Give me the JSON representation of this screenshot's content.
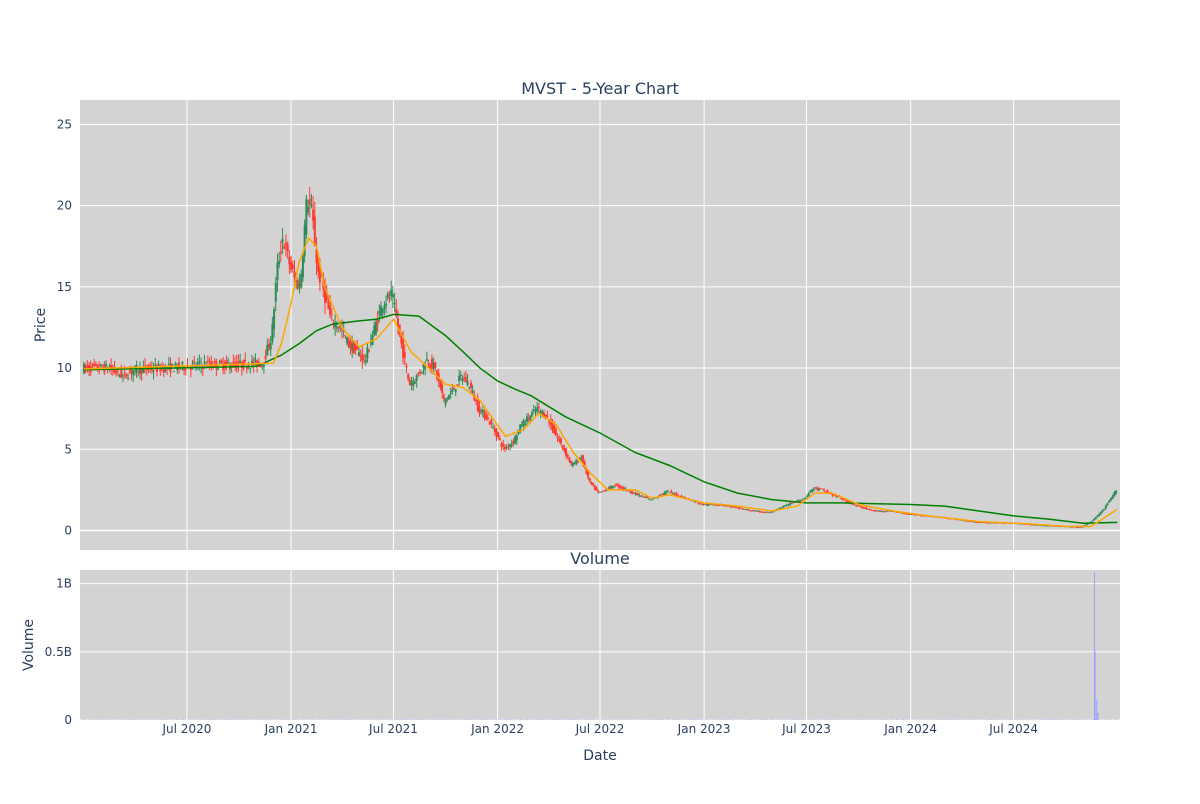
{
  "chart_data": [
    {
      "type": "candlestick",
      "title": "MVST - 5-Year Chart",
      "xlabel": "",
      "ylabel": "Price",
      "ylim": [
        -1.2,
        26.5
      ],
      "yticks": [
        0,
        5,
        10,
        15,
        20,
        25
      ],
      "grid": true,
      "colors": {
        "up": "#2e8b57",
        "down": "#ff3b30",
        "ma_short": "#ffa500",
        "ma_long": "#008000",
        "plot_bg": "#d3d3d3"
      },
      "price_path": [
        [
          "2020-01-01",
          10.0
        ],
        [
          "2020-02-15",
          10.0
        ],
        [
          "2020-03-15",
          9.5
        ],
        [
          "2020-04-01",
          9.9
        ],
        [
          "2020-06-01",
          10.0
        ],
        [
          "2020-07-01",
          10.1
        ],
        [
          "2020-08-01",
          10.2
        ],
        [
          "2020-10-01",
          10.2
        ],
        [
          "2020-11-15",
          10.3
        ],
        [
          "2020-12-01",
          12.0
        ],
        [
          "2020-12-10",
          16.0
        ],
        [
          "2020-12-20",
          18.0
        ],
        [
          "2021-01-01",
          16.5
        ],
        [
          "2021-01-10",
          15.5
        ],
        [
          "2021-01-20",
          15.0
        ],
        [
          "2021-02-01",
          20.5
        ],
        [
          "2021-02-10",
          19.5
        ],
        [
          "2021-02-20",
          16.0
        ],
        [
          "2021-03-01",
          15.0
        ],
        [
          "2021-03-15",
          13.0
        ],
        [
          "2021-04-01",
          12.5
        ],
        [
          "2021-04-15",
          11.5
        ],
        [
          "2021-05-01",
          11.0
        ],
        [
          "2021-05-15",
          10.5
        ],
        [
          "2021-06-01",
          12.5
        ],
        [
          "2021-06-15",
          14.0
        ],
        [
          "2021-07-01",
          14.5
        ],
        [
          "2021-07-15",
          12.0
        ],
        [
          "2021-08-01",
          9.0
        ],
        [
          "2021-08-15",
          9.5
        ],
        [
          "2021-09-01",
          10.5
        ],
        [
          "2021-09-15",
          10.0
        ],
        [
          "2021-10-01",
          8.0
        ],
        [
          "2021-10-15",
          8.5
        ],
        [
          "2021-11-01",
          9.5
        ],
        [
          "2021-11-15",
          9.0
        ],
        [
          "2021-12-01",
          7.5
        ],
        [
          "2021-12-15",
          7.0
        ],
        [
          "2022-01-01",
          6.0
        ],
        [
          "2022-01-15",
          5.0
        ],
        [
          "2022-02-01",
          5.5
        ],
        [
          "2022-02-15",
          6.5
        ],
        [
          "2022-03-01",
          7.0
        ],
        [
          "2022-03-15",
          7.5
        ],
        [
          "2022-04-01",
          7.0
        ],
        [
          "2022-04-15",
          6.0
        ],
        [
          "2022-05-01",
          5.0
        ],
        [
          "2022-05-15",
          4.0
        ],
        [
          "2022-06-01",
          4.5
        ],
        [
          "2022-06-15",
          3.0
        ],
        [
          "2022-07-01",
          2.3
        ],
        [
          "2022-08-01",
          2.8
        ],
        [
          "2022-09-01",
          2.3
        ],
        [
          "2022-10-01",
          1.9
        ],
        [
          "2022-11-01",
          2.4
        ],
        [
          "2022-12-01",
          2.0
        ],
        [
          "2023-01-01",
          1.6
        ],
        [
          "2023-02-01",
          1.6
        ],
        [
          "2023-03-01",
          1.4
        ],
        [
          "2023-04-01",
          1.2
        ],
        [
          "2023-05-01",
          1.1
        ],
        [
          "2023-06-01",
          1.6
        ],
        [
          "2023-07-01",
          2.0
        ],
        [
          "2023-07-15",
          2.6
        ],
        [
          "2023-08-01",
          2.5
        ],
        [
          "2023-09-01",
          2.0
        ],
        [
          "2023-10-01",
          1.5
        ],
        [
          "2023-11-01",
          1.2
        ],
        [
          "2023-12-01",
          1.2
        ],
        [
          "2024-01-01",
          1.0
        ],
        [
          "2024-02-01",
          0.9
        ],
        [
          "2024-03-01",
          0.8
        ],
        [
          "2024-05-01",
          0.5
        ],
        [
          "2024-07-01",
          0.45
        ],
        [
          "2024-09-01",
          0.3
        ],
        [
          "2024-11-01",
          0.2
        ],
        [
          "2024-11-20",
          0.6
        ],
        [
          "2024-12-10",
          1.3
        ],
        [
          "2024-12-31",
          2.4
        ]
      ],
      "ma_short": [
        [
          "2020-01-01",
          9.95
        ],
        [
          "2020-12-01",
          10.3
        ],
        [
          "2020-12-15",
          11.5
        ],
        [
          "2021-01-01",
          14.0
        ],
        [
          "2021-01-15",
          16.5
        ],
        [
          "2021-02-01",
          18.0
        ],
        [
          "2021-02-15",
          17.5
        ],
        [
          "2021-03-01",
          15.0
        ],
        [
          "2021-04-01",
          12.5
        ],
        [
          "2021-05-01",
          11.3
        ],
        [
          "2021-06-01",
          11.8
        ],
        [
          "2021-07-01",
          13.0
        ],
        [
          "2021-08-01",
          11.0
        ],
        [
          "2021-09-01",
          10.0
        ],
        [
          "2021-10-01",
          9.0
        ],
        [
          "2021-11-01",
          8.8
        ],
        [
          "2021-12-01",
          8.0
        ],
        [
          "2022-01-15",
          5.8
        ],
        [
          "2022-02-15",
          6.2
        ],
        [
          "2022-03-15",
          7.2
        ],
        [
          "2022-04-15",
          6.5
        ],
        [
          "2022-05-15",
          4.8
        ],
        [
          "2022-06-15",
          3.5
        ],
        [
          "2022-07-15",
          2.5
        ],
        [
          "2022-09-01",
          2.5
        ],
        [
          "2022-10-01",
          2.0
        ],
        [
          "2022-11-01",
          2.2
        ],
        [
          "2023-01-01",
          1.7
        ],
        [
          "2023-03-01",
          1.5
        ],
        [
          "2023-05-01",
          1.2
        ],
        [
          "2023-06-15",
          1.5
        ],
        [
          "2023-07-15",
          2.3
        ],
        [
          "2023-08-15",
          2.3
        ],
        [
          "2023-10-01",
          1.6
        ],
        [
          "2023-12-01",
          1.2
        ],
        [
          "2024-02-01",
          0.9
        ],
        [
          "2024-05-01",
          0.55
        ],
        [
          "2024-08-01",
          0.4
        ],
        [
          "2024-10-01",
          0.25
        ],
        [
          "2024-11-15",
          0.25
        ],
        [
          "2024-12-31",
          1.3
        ]
      ],
      "ma_long": [
        [
          "2020-01-01",
          9.9
        ],
        [
          "2020-06-01",
          10.0
        ],
        [
          "2020-11-01",
          10.1
        ],
        [
          "2020-12-15",
          10.8
        ],
        [
          "2021-01-15",
          11.5
        ],
        [
          "2021-02-15",
          12.3
        ],
        [
          "2021-03-15",
          12.7
        ],
        [
          "2021-05-01",
          12.9
        ],
        [
          "2021-06-01",
          13.0
        ],
        [
          "2021-07-01",
          13.3
        ],
        [
          "2021-08-15",
          13.2
        ],
        [
          "2021-10-01",
          12.0
        ],
        [
          "2021-11-01",
          11.0
        ],
        [
          "2021-12-01",
          10.0
        ],
        [
          "2022-01-01",
          9.2
        ],
        [
          "2022-02-01",
          8.7
        ],
        [
          "2022-03-01",
          8.3
        ],
        [
          "2022-05-01",
          7.0
        ],
        [
          "2022-07-01",
          6.0
        ],
        [
          "2022-09-01",
          4.8
        ],
        [
          "2022-11-01",
          4.0
        ],
        [
          "2023-01-01",
          3.0
        ],
        [
          "2023-03-01",
          2.3
        ],
        [
          "2023-05-01",
          1.9
        ],
        [
          "2023-07-01",
          1.7
        ],
        [
          "2023-09-01",
          1.7
        ],
        [
          "2023-11-01",
          1.65
        ],
        [
          "2024-01-01",
          1.6
        ],
        [
          "2024-03-01",
          1.5
        ],
        [
          "2024-05-01",
          1.2
        ],
        [
          "2024-07-01",
          0.9
        ],
        [
          "2024-09-01",
          0.7
        ],
        [
          "2024-11-01",
          0.45
        ],
        [
          "2024-12-31",
          0.5
        ]
      ]
    },
    {
      "type": "bar",
      "title": "Volume",
      "xlabel": "Date",
      "ylabel": "Volume",
      "ylim": [
        0,
        1.1
      ],
      "yticks": [
        0,
        0.5,
        1
      ],
      "ytick_labels": [
        "0",
        "0.5B",
        "1B"
      ],
      "grid": true,
      "colors": {
        "bar": "#9aa0ff",
        "plot_bg": "#d3d3d3"
      },
      "spikes": [
        [
          "2024-11-21",
          1.08
        ],
        [
          "2024-11-22",
          0.5
        ],
        [
          "2024-11-25",
          0.15
        ],
        [
          "2024-11-27",
          0.05
        ]
      ],
      "baseline": 0.003
    }
  ],
  "x_axis": {
    "range": [
      "2019-12-25",
      "2025-01-05"
    ],
    "ticks": [
      [
        "2020-07-01",
        "Jul 2020"
      ],
      [
        "2021-01-01",
        "Jan 2021"
      ],
      [
        "2021-07-01",
        "Jul 2021"
      ],
      [
        "2022-01-01",
        "Jan 2022"
      ],
      [
        "2022-07-01",
        "Jul 2022"
      ],
      [
        "2023-01-01",
        "Jan 2023"
      ],
      [
        "2023-07-01",
        "Jul 2023"
      ],
      [
        "2024-01-01",
        "Jan 2024"
      ],
      [
        "2024-07-01",
        "Jul 2024"
      ]
    ]
  }
}
